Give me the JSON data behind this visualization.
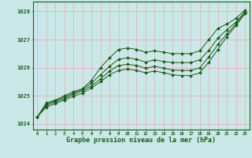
{
  "title": "Graphe pression niveau de la mer (hPa)",
  "background_color": "#cbe8e8",
  "grid_color": "#e8aaaa",
  "line_color": "#1a5c1a",
  "marker_color": "#1a5c1a",
  "x_ticks": [
    0,
    1,
    2,
    3,
    4,
    5,
    6,
    7,
    8,
    9,
    10,
    11,
    12,
    13,
    14,
    15,
    16,
    17,
    18,
    19,
    20,
    21,
    22,
    23
  ],
  "ylim": [
    1023.8,
    1028.35
  ],
  "yticks": [
    1024,
    1025,
    1026,
    1027,
    1028
  ],
  "series": [
    [
      1024.25,
      1024.75,
      1024.85,
      1025.0,
      1025.15,
      1025.25,
      1025.55,
      1026.0,
      1026.35,
      1026.65,
      1026.7,
      1026.65,
      1026.55,
      1026.6,
      1026.55,
      1026.5,
      1026.5,
      1026.5,
      1026.6,
      1027.0,
      1027.4,
      1027.55,
      1027.75,
      1028.05
    ],
    [
      1024.25,
      1024.7,
      1024.82,
      1024.95,
      1025.1,
      1025.22,
      1025.45,
      1025.75,
      1026.05,
      1026.3,
      1026.35,
      1026.3,
      1026.2,
      1026.28,
      1026.22,
      1026.18,
      1026.18,
      1026.18,
      1026.28,
      1026.62,
      1027.05,
      1027.35,
      1027.62,
      1027.98
    ],
    [
      1024.25,
      1024.65,
      1024.78,
      1024.9,
      1025.05,
      1025.18,
      1025.35,
      1025.6,
      1025.88,
      1026.08,
      1026.12,
      1026.08,
      1025.98,
      1026.05,
      1025.98,
      1025.92,
      1025.9,
      1025.9,
      1026.0,
      1026.38,
      1026.82,
      1027.2,
      1027.55,
      1027.95
    ],
    [
      1024.25,
      1024.6,
      1024.72,
      1024.85,
      1024.98,
      1025.1,
      1025.28,
      1025.5,
      1025.75,
      1025.9,
      1025.95,
      1025.9,
      1025.82,
      1025.88,
      1025.82,
      1025.75,
      1025.72,
      1025.72,
      1025.82,
      1026.2,
      1026.65,
      1027.1,
      1027.5,
      1027.92
    ]
  ]
}
